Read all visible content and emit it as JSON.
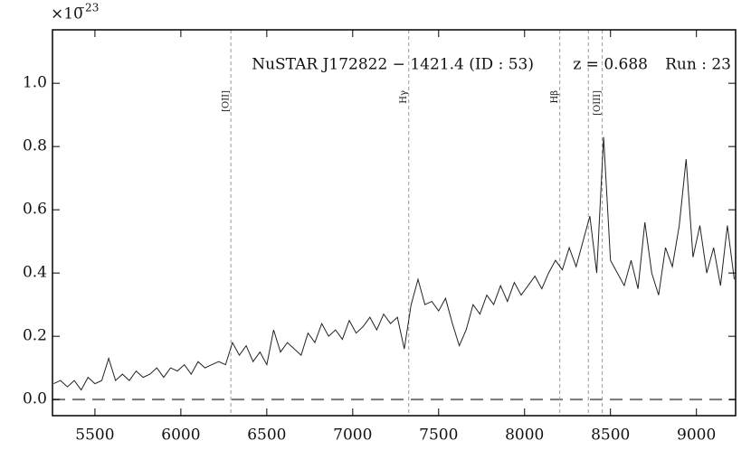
{
  "chart_data": {
    "type": "line",
    "offset_text": "×10",
    "offset_exponent": "−23",
    "annotations": [
      "NuSTAR J172822 − 1421.4 (ID : 53)",
      "z = 0.688",
      "Run : 23"
    ],
    "x": [
      5260,
      5300,
      5340,
      5380,
      5420,
      5460,
      5500,
      5540,
      5580,
      5620,
      5660,
      5700,
      5740,
      5780,
      5820,
      5860,
      5900,
      5940,
      5980,
      6020,
      6060,
      6100,
      6140,
      6180,
      6220,
      6260,
      6300,
      6340,
      6380,
      6420,
      6460,
      6500,
      6540,
      6580,
      6620,
      6660,
      6700,
      6740,
      6780,
      6820,
      6860,
      6900,
      6940,
      6980,
      7020,
      7060,
      7100,
      7140,
      7180,
      7220,
      7260,
      7300,
      7340,
      7380,
      7420,
      7460,
      7500,
      7540,
      7580,
      7620,
      7660,
      7700,
      7740,
      7780,
      7820,
      7860,
      7900,
      7940,
      7980,
      8020,
      8060,
      8100,
      8140,
      8180,
      8220,
      8260,
      8300,
      8340,
      8380,
      8420,
      8460,
      8500,
      8540,
      8580,
      8620,
      8660,
      8700,
      8740,
      8780,
      8820,
      8860,
      8900,
      8940,
      8980,
      9020,
      9060,
      9100,
      9140,
      9180,
      9220
    ],
    "values": [
      0.05,
      0.06,
      0.04,
      0.06,
      0.03,
      0.07,
      0.05,
      0.06,
      0.13,
      0.06,
      0.08,
      0.06,
      0.09,
      0.07,
      0.08,
      0.1,
      0.07,
      0.1,
      0.09,
      0.11,
      0.08,
      0.12,
      0.1,
      0.11,
      0.12,
      0.11,
      0.18,
      0.14,
      0.17,
      0.12,
      0.15,
      0.11,
      0.22,
      0.15,
      0.18,
      0.16,
      0.14,
      0.21,
      0.18,
      0.24,
      0.2,
      0.22,
      0.19,
      0.25,
      0.21,
      0.23,
      0.26,
      0.22,
      0.27,
      0.24,
      0.26,
      0.16,
      0.3,
      0.38,
      0.3,
      0.31,
      0.28,
      0.32,
      0.24,
      0.17,
      0.22,
      0.3,
      0.27,
      0.33,
      0.3,
      0.36,
      0.31,
      0.37,
      0.33,
      0.36,
      0.39,
      0.35,
      0.4,
      0.44,
      0.41,
      0.48,
      0.42,
      0.5,
      0.58,
      0.4,
      0.83,
      0.44,
      0.4,
      0.36,
      0.44,
      0.35,
      0.56,
      0.4,
      0.33,
      0.48,
      0.42,
      0.55,
      0.76,
      0.45,
      0.55,
      0.4,
      0.48,
      0.36,
      0.55,
      0.38
    ],
    "color": "#222222",
    "lines": [
      {
        "x": 6291,
        "label": "[OII]"
      },
      {
        "x": 7326,
        "label": "Hγ"
      },
      {
        "x": 8205,
        "label": "Hβ"
      },
      {
        "x": 8371,
        "label": null
      },
      {
        "x": 8452,
        "label": "[OIII]"
      }
    ],
    "hline": 0,
    "xlim": [
      5253,
      9228
    ],
    "ylim": [
      -0.051,
      1.169
    ],
    "xticks": [
      5500,
      6000,
      6500,
      7000,
      7500,
      8000,
      8500,
      9000
    ],
    "yticks": [
      {
        "value": 0.0,
        "label": "0.0"
      },
      0.2,
      0.4,
      0.6,
      0.8,
      {
        "value": 1.0,
        "label": "1.0"
      }
    ]
  }
}
